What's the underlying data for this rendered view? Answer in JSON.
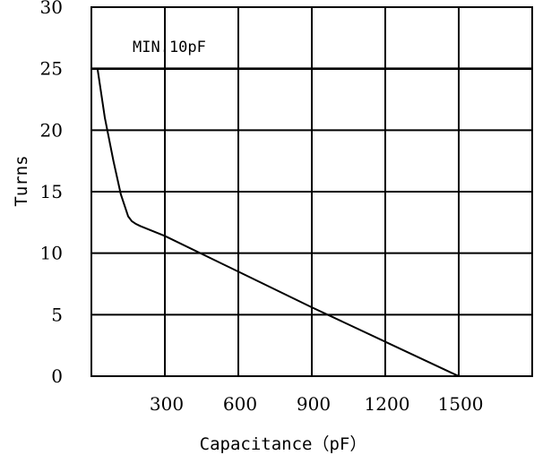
{
  "chart_data": {
    "type": "line",
    "xlabel": "Capacitance（pF）",
    "ylabel": "Turns",
    "annotation": "MIN.10pF",
    "xlim": [
      0,
      1800
    ],
    "ylim": [
      0,
      30
    ],
    "x_ticks": [
      {
        "value": 300,
        "label": "300"
      },
      {
        "value": 600,
        "label": "600"
      },
      {
        "value": 900,
        "label": "900"
      },
      {
        "value": 1200,
        "label": "1200"
      },
      {
        "value": 1500,
        "label": "1500"
      }
    ],
    "y_ticks": [
      {
        "value": 0,
        "label": "0"
      },
      {
        "value": 5,
        "label": "5"
      },
      {
        "value": 10,
        "label": "10"
      },
      {
        "value": 15,
        "label": "15"
      },
      {
        "value": 20,
        "label": "20"
      },
      {
        "value": 25,
        "label": "25"
      },
      {
        "value": 30,
        "label": "30"
      }
    ],
    "x_grid": [
      300,
      600,
      900,
      1200,
      1500
    ],
    "y_grid": [
      0,
      5,
      10,
      15,
      20,
      25,
      30
    ],
    "extra_hlines": [
      30
    ],
    "bold_hlines": [
      25
    ],
    "grid": true,
    "series": [
      {
        "color": "#000000",
        "x": [
          25,
          55,
          90,
          120,
          150,
          165,
          180,
          200,
          300,
          600,
          900,
          1200,
          1500
        ],
        "y": [
          25,
          21,
          17.5,
          14.8,
          13,
          12.6,
          12.4,
          12.2,
          11.4,
          8.5,
          5.6,
          2.8,
          0
        ]
      }
    ]
  }
}
